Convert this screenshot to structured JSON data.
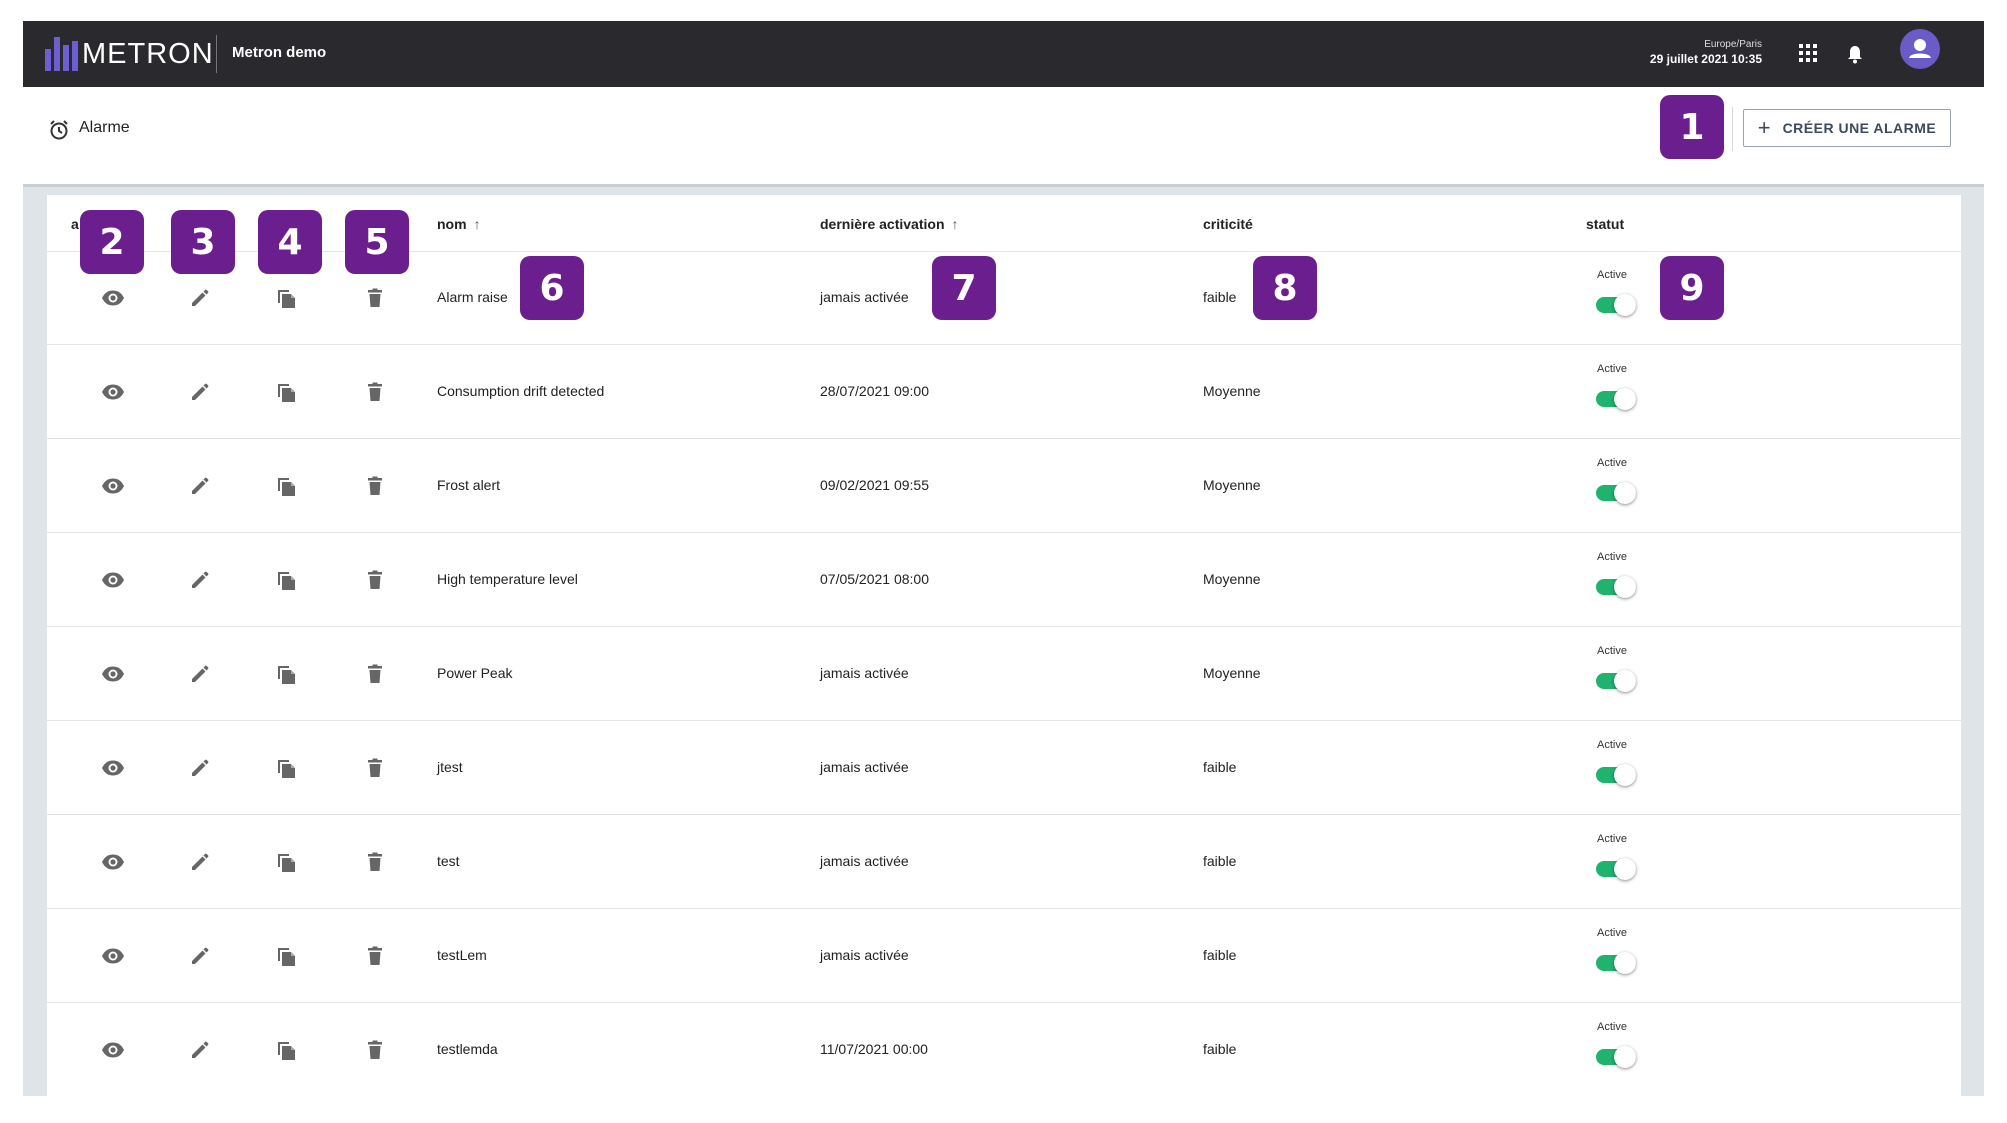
{
  "app": {
    "logo_text": "METRON",
    "org_name": "Metron demo",
    "timezone": "Europe/Paris",
    "datetime": "29 juillet 2021 10:35"
  },
  "page": {
    "title": "Alarme",
    "create_button_label": "CRÉER UNE ALARME"
  },
  "table": {
    "columns": {
      "actions_partial": "a",
      "name": "nom",
      "last_activation": "dernière activation",
      "criticality": "criticité",
      "status": "statut"
    },
    "rows": [
      {
        "name": "Alarm raise",
        "last_activation": "jamais activée",
        "criticality": "faible",
        "status": "Active"
      },
      {
        "name": "Consumption drift detected",
        "last_activation": "28/07/2021 09:00",
        "criticality": "Moyenne",
        "status": "Active"
      },
      {
        "name": "Frost alert",
        "last_activation": "09/02/2021 09:55",
        "criticality": "Moyenne",
        "status": "Active"
      },
      {
        "name": "High temperature level",
        "last_activation": "07/05/2021 08:00",
        "criticality": "Moyenne",
        "status": "Active"
      },
      {
        "name": "Power Peak",
        "last_activation": "jamais activée",
        "criticality": "Moyenne",
        "status": "Active"
      },
      {
        "name": "jtest",
        "last_activation": "jamais activée",
        "criticality": "faible",
        "status": "Active"
      },
      {
        "name": "test",
        "last_activation": "jamais activée",
        "criticality": "faible",
        "status": "Active"
      },
      {
        "name": "testLem",
        "last_activation": "jamais activée",
        "criticality": "faible",
        "status": "Active"
      },
      {
        "name": "testlemda",
        "last_activation": "11/07/2021 00:00",
        "criticality": "faible",
        "status": "Active"
      }
    ]
  },
  "annotations": [
    "1",
    "2",
    "3",
    "4",
    "5",
    "6",
    "7",
    "8",
    "9"
  ],
  "colors": {
    "topbar": "#2a2a2e",
    "accent": "#6a5bc7",
    "toggle_on": "#1fb36e",
    "badge": "#6b1f8e"
  },
  "icons": {
    "view": "eye-icon",
    "edit": "pencil-icon",
    "duplicate": "copy-icon",
    "delete": "trash-icon",
    "alarm": "alarm-clock-icon",
    "apps": "apps-grid-icon",
    "notifications": "bell-icon",
    "user": "user-avatar-icon"
  }
}
